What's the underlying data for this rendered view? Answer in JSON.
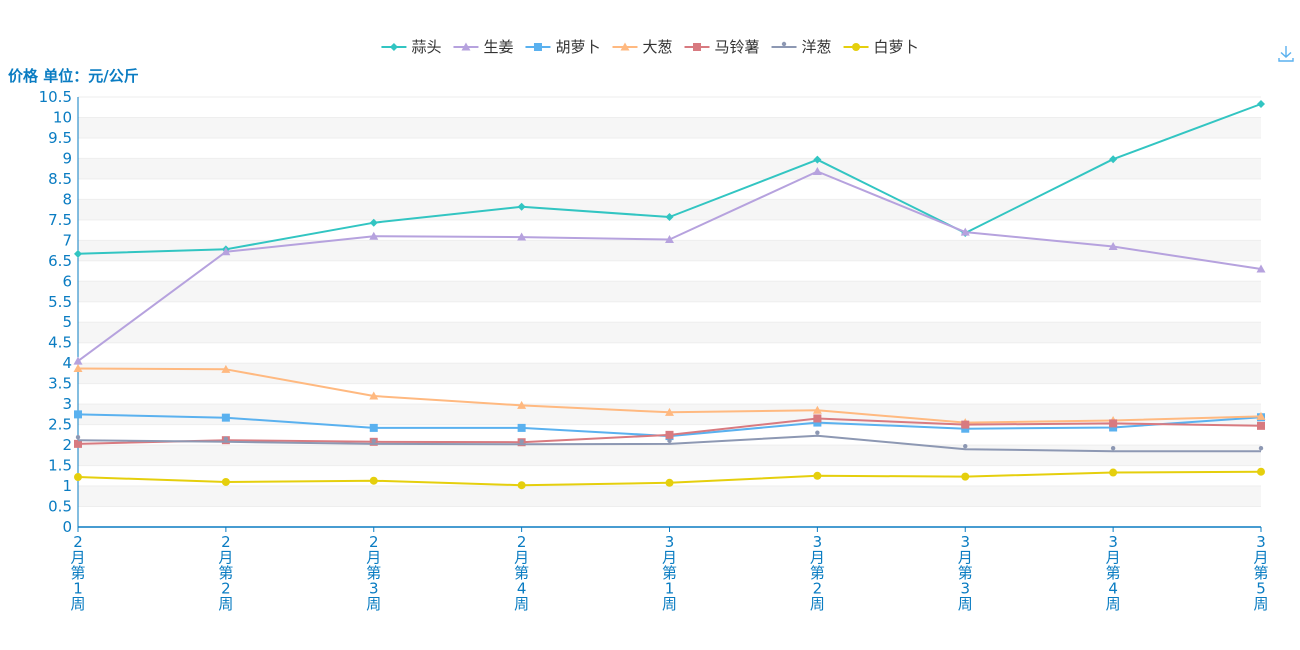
{
  "chart_data": {
    "type": "line",
    "ylabel": "价格 单位：元/公斤",
    "ylim": [
      0,
      10.5
    ],
    "ytick_step": 0.5,
    "categories": [
      "2月第1周",
      "2月第2周",
      "2月第3周",
      "2月第4周",
      "3月第1周",
      "3月第2周",
      "3月第3周",
      "3月第4周",
      "3月第5周"
    ],
    "legend_position": "top-center",
    "grid": true,
    "series": [
      {
        "name": "蒜头",
        "color": "#32c5c2",
        "marker": "diamond",
        "values": [
          6.67,
          6.78,
          7.43,
          7.82,
          7.57,
          8.97,
          7.18,
          8.98,
          10.33
        ]
      },
      {
        "name": "生姜",
        "color": "#b6a2de",
        "marker": "triangle",
        "values": [
          4.05,
          6.72,
          7.1,
          7.08,
          7.02,
          8.68,
          7.2,
          6.85,
          6.3
        ]
      },
      {
        "name": "胡萝卜",
        "color": "#5ab1ef",
        "marker": "square",
        "values": [
          2.75,
          2.67,
          2.42,
          2.42,
          2.22,
          2.55,
          2.4,
          2.43,
          2.68
        ]
      },
      {
        "name": "大葱",
        "color": "#ffb980",
        "marker": "triangle",
        "values": [
          3.87,
          3.85,
          3.2,
          2.97,
          2.8,
          2.85,
          2.55,
          2.6,
          2.7
        ]
      },
      {
        "name": "马铃薯",
        "color": "#d87a80",
        "marker": "square",
        "values": [
          2.03,
          2.12,
          2.08,
          2.07,
          2.25,
          2.65,
          2.5,
          2.53,
          2.47
        ]
      },
      {
        "name": "洋葱",
        "color": "#8d98b3",
        "marker": "pin",
        "values": [
          2.12,
          2.08,
          2.03,
          2.02,
          2.03,
          2.23,
          1.9,
          1.85,
          1.85
        ]
      },
      {
        "name": "白萝卜",
        "color": "#e5cf0d",
        "marker": "circle",
        "values": [
          1.22,
          1.1,
          1.13,
          1.02,
          1.08,
          1.25,
          1.23,
          1.33,
          1.35
        ]
      }
    ]
  },
  "toolbar": {
    "download_icon": "download-icon"
  }
}
